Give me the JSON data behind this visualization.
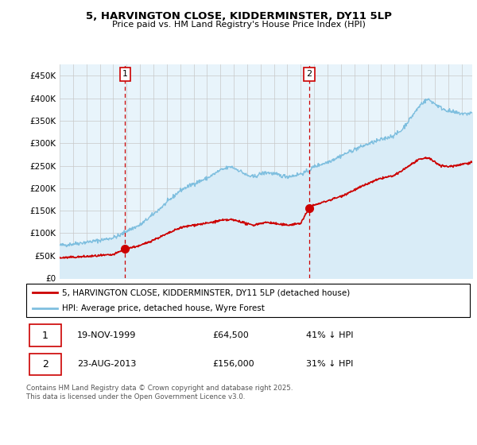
{
  "title": "5, HARVINGTON CLOSE, KIDDERMINSTER, DY11 5LP",
  "subtitle": "Price paid vs. HM Land Registry's House Price Index (HPI)",
  "legend_line1": "5, HARVINGTON CLOSE, KIDDERMINSTER, DY11 5LP (detached house)",
  "legend_line2": "HPI: Average price, detached house, Wyre Forest",
  "sale1_date": "19-NOV-1999",
  "sale1_price": "£64,500",
  "sale1_hpi": "41% ↓ HPI",
  "sale2_date": "23-AUG-2013",
  "sale2_price": "£156,000",
  "sale2_hpi": "31% ↓ HPI",
  "footer": "Contains HM Land Registry data © Crown copyright and database right 2025.\nThis data is licensed under the Open Government Licence v3.0.",
  "hpi_color": "#7fbfdf",
  "hpi_fill_color": "#d9ecf7",
  "price_color": "#cc0000",
  "vline_color": "#cc0000",
  "grid_color": "#c8c8c8",
  "bg_color": "#e8f4fb",
  "ylim": [
    0,
    475000
  ],
  "yticks": [
    0,
    50000,
    100000,
    150000,
    200000,
    250000,
    300000,
    350000,
    400000,
    450000
  ],
  "xlim_start": 1995.0,
  "xlim_end": 2025.8,
  "sale1_x": 1999.89,
  "sale1_y": 64500,
  "sale2_x": 2013.64,
  "sale2_y": 156000
}
